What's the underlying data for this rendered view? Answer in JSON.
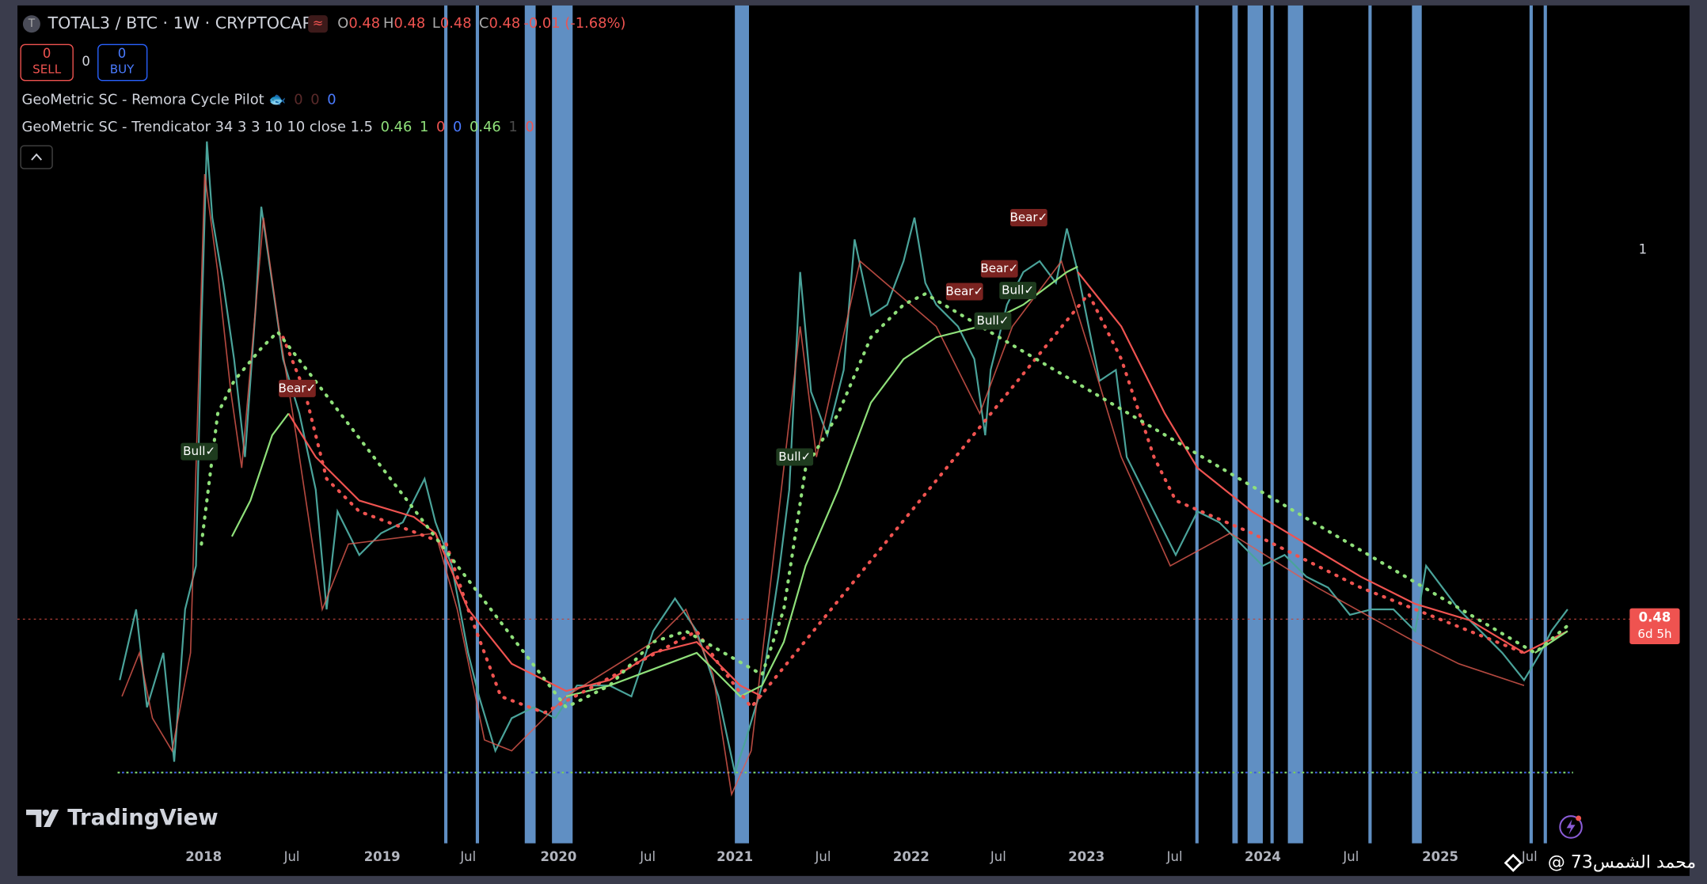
{
  "header": {
    "symbol": "TOTAL3 / BTC · 1W · CRYPTOCAP",
    "ohlc": [
      {
        "label": "O",
        "value": "0.48"
      },
      {
        "label": "H",
        "value": "0.48"
      },
      {
        "label": "L",
        "value": "0.48"
      },
      {
        "label": "C",
        "value": "0.48"
      }
    ],
    "change": "-0.01 (-1.68%)"
  },
  "trade": {
    "sell_count": "0",
    "sell": "SELL",
    "spread": "0",
    "buy_count": "0",
    "buy": "BUY"
  },
  "indicators": [
    {
      "name": "GeoMetric SC - Remora Cycle Pilot 🐟",
      "values": [
        "0",
        "0",
        "0"
      ]
    },
    {
      "name": "GeoMetric SC - Trendicator 34 3 3 10 10 close 1.5",
      "values": [
        "0.46",
        "1",
        "0",
        "0",
        "0.46",
        "1",
        "0"
      ]
    }
  ],
  "pane_label": "1",
  "price_tag": {
    "price": "0.48",
    "countdown": "6d 5h"
  },
  "time_axis": [
    "2018",
    "Jul",
    "2019",
    "Jul",
    "2020",
    "Jul",
    "2021",
    "Jul",
    "2022",
    "Jul",
    "2023",
    "Jul",
    "2024",
    "Jul",
    "2025",
    "Jul"
  ],
  "signals": [
    "Bull✓",
    "Bear✓",
    "Bull✓",
    "Bear✓",
    "Bear✓",
    "Bear✓",
    "Bull✓",
    "Bull✓"
  ],
  "logo": "TradingView",
  "watermark": "@ محمد الشمس73"
}
